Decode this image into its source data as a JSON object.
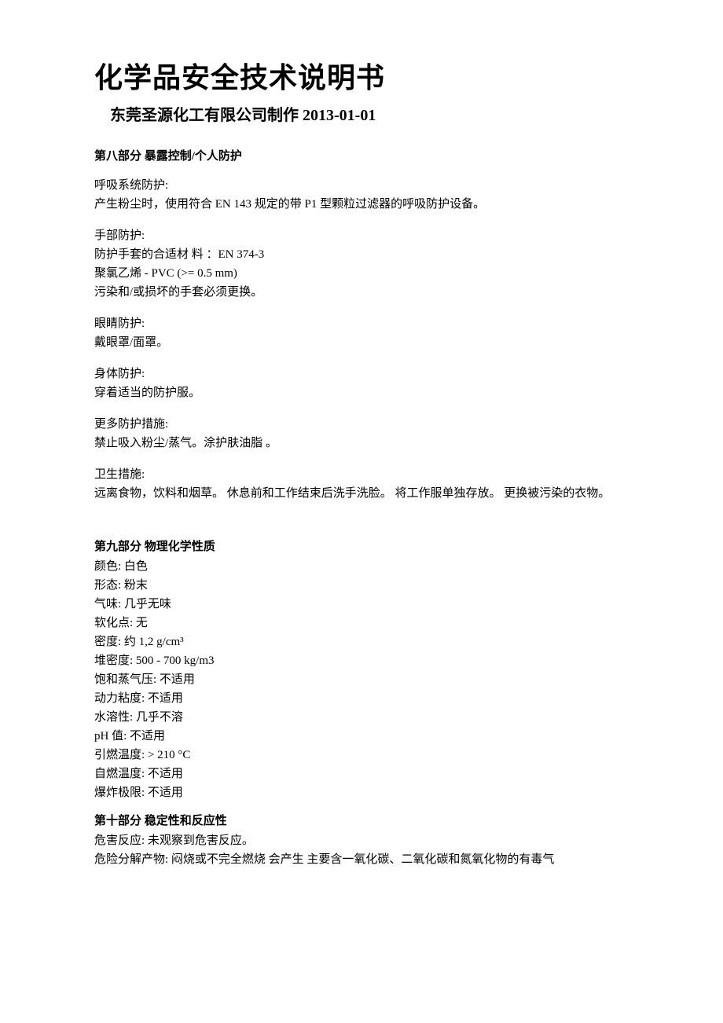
{
  "header": {
    "main_title": "化学品安全技术说明书",
    "subtitle": "东莞圣源化工有限公司制作  2013-01-01"
  },
  "section8": {
    "heading": "第八部分  暴露控制/个人防护",
    "respiratory": {
      "label": "呼吸系统防护:",
      "text": "产生粉尘时，使用符合 EN 143 规定的带 P1 型颗粒过滤器的呼吸防护设备。"
    },
    "hand": {
      "label": "手部防护:",
      "line1": "防护手套的合适材  料  ：EN 374-3",
      "line2": "聚氯乙烯   - PVC (>= 0.5 mm)",
      "line3": "污染和/或损坏的手套必须更换。"
    },
    "eye": {
      "label": "眼睛防护:",
      "text": "戴眼罩/面罩。"
    },
    "body": {
      "label": "身体防护:",
      "text": "穿着适当的防护服。"
    },
    "more": {
      "label": "更多防护措施:",
      "text": "禁止吸入粉尘/蒸气。涂护肤油脂  。"
    },
    "hygiene": {
      "label": "卫生措施:",
      "text": "远离食物，饮料和烟草。  休息前和工作结束后洗手洗脸。    将工作服单独存放。 更换被污染的衣物。"
    }
  },
  "section9": {
    "heading": "第九部分  物理化学性质",
    "props": {
      "color": "颜色:    白色",
      "form": "形态:    粉末",
      "odor": "气味:    几乎无味",
      "softening": "软化点:  无",
      "density": "密度:    约  1,2 g/cm³",
      "bulk_density": "堆密度: 500 - 700 kg/m3",
      "vapor_pressure": "饱和蒸气压:    不适用",
      "viscosity": "动力粘度:      不适用",
      "solubility": "水溶性:    几乎不溶",
      "ph": "pH 值:    不适用",
      "ignition_temp": "引燃温度: > 210 °C",
      "autoignition": "自燃温度:    不适用",
      "explosion_limit": "爆炸极限:    不适用"
    }
  },
  "section10": {
    "heading": "第十部分  稳定性和反应性",
    "hazard_reaction": "危害反应:    未观察到危害反应。",
    "decomposition": "危险分解产物:  闷烧或不完全燃烧  会产生  主要含一氧化碳、二氧化碳和氮氧化物的有毒气"
  }
}
